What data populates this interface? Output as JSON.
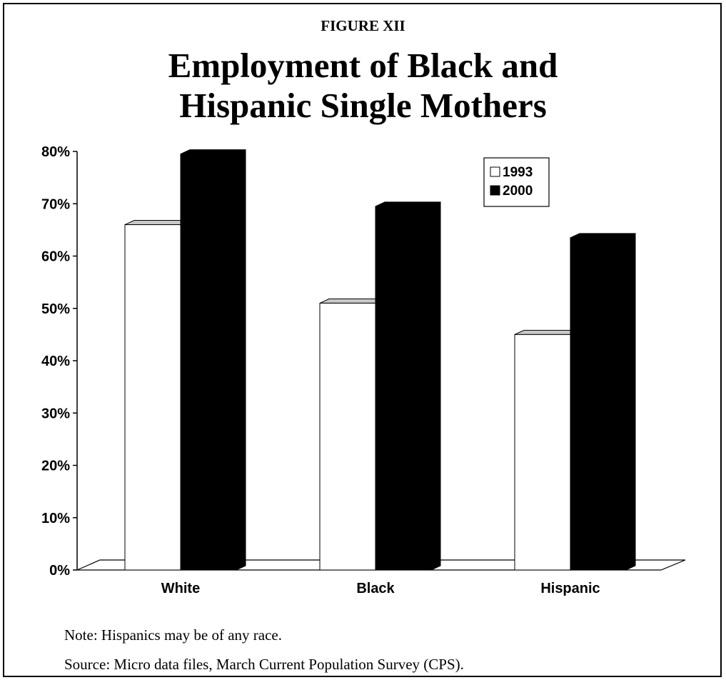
{
  "figure_label": "FIGURE XII",
  "title_lines": [
    "Employment of Black and",
    "Hispanic Single Mothers"
  ],
  "chart_data": {
    "type": "bar",
    "categories": [
      "White",
      "Black",
      "Hispanic"
    ],
    "series": [
      {
        "name": "1993",
        "values": [
          66,
          51,
          45
        ],
        "color": "#ffffff"
      },
      {
        "name": "2000",
        "values": [
          79.5,
          69.5,
          63.5
        ],
        "color": "#000000"
      }
    ],
    "yticks": [
      "0%",
      "10%",
      "20%",
      "30%",
      "40%",
      "50%",
      "60%",
      "70%",
      "80%"
    ],
    "ylim": [
      0,
      80
    ],
    "xlabel": "",
    "ylabel": "",
    "grid": false,
    "legend_position": "top-right",
    "style": "3d"
  },
  "notes": {
    "note": "Note: Hispanics may be of any race.",
    "source": "Source:  Micro data files, March Current Population Survey (CPS)."
  }
}
